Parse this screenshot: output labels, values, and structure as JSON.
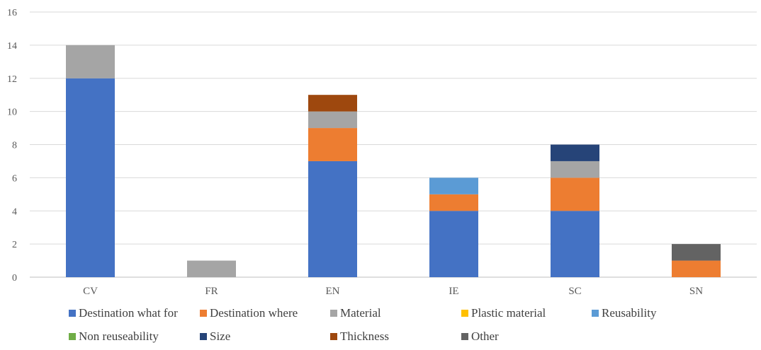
{
  "chart_data": {
    "type": "bar",
    "stacked": true,
    "categories": [
      "CV",
      "FR",
      "EN",
      "IE",
      "SC",
      "SN"
    ],
    "ylim": [
      0,
      16
    ],
    "yticks": [
      "0",
      "2",
      "4",
      "6",
      "8",
      "10",
      "12",
      "14",
      "16"
    ],
    "grid": true,
    "legend_position": "bottom",
    "series": [
      {
        "name": "Destination what for",
        "color": "#4472C4",
        "values": [
          12,
          0,
          7,
          4,
          4,
          0
        ]
      },
      {
        "name": "Destination where",
        "color": "#ED7D31",
        "values": [
          0,
          0,
          2,
          1,
          2,
          1
        ]
      },
      {
        "name": "Material",
        "color": "#A5A5A5",
        "values": [
          2,
          1,
          1,
          0,
          1,
          0
        ]
      },
      {
        "name": "Plastic material",
        "color": "#FFC000",
        "values": [
          0,
          0,
          0,
          0,
          0,
          0
        ]
      },
      {
        "name": "Reusability",
        "color": "#5B9BD5",
        "values": [
          0,
          0,
          0,
          1,
          0,
          0
        ]
      },
      {
        "name": "Non reuseability",
        "color": "#70AD47",
        "values": [
          0,
          0,
          0,
          0,
          0,
          0
        ]
      },
      {
        "name": "Size",
        "color": "#264478",
        "values": [
          0,
          0,
          0,
          0,
          1,
          0
        ]
      },
      {
        "name": "Thickness",
        "color": "#9E480E",
        "values": [
          0,
          0,
          1,
          0,
          0,
          0
        ]
      },
      {
        "name": "Other",
        "color": "#636363",
        "values": [
          0,
          0,
          0,
          0,
          0,
          1
        ]
      }
    ]
  }
}
